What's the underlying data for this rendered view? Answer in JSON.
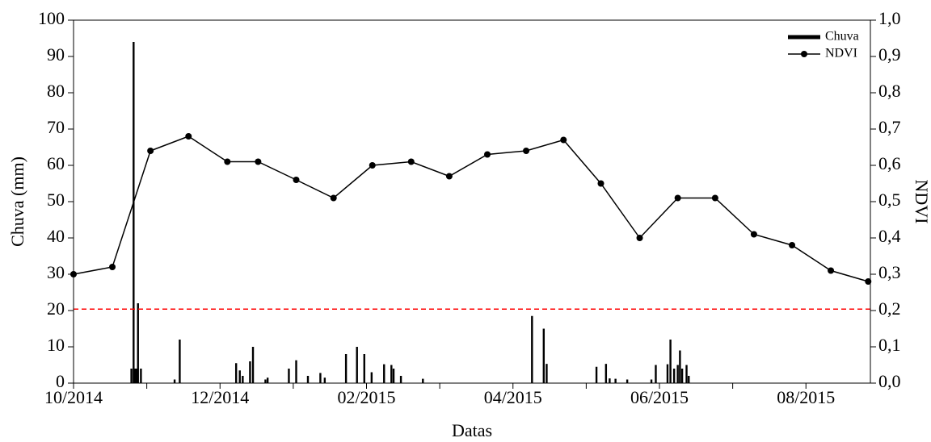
{
  "chart_data": {
    "type": "combo",
    "y_label": "Chuva (mm)",
    "y2_label": "NDVI",
    "x_label": "Datas",
    "xlim": [
      0,
      10.88
    ],
    "xticks": [
      {
        "value": 0,
        "label": "10/2014"
      },
      {
        "value": 2,
        "label": "12/2014"
      },
      {
        "value": 4,
        "label": "02/2015"
      },
      {
        "value": 6,
        "label": "04/2015"
      },
      {
        "value": 8,
        "label": "06/2015"
      },
      {
        "value": 10,
        "label": "08/2015"
      }
    ],
    "xminor_ticks": [
      1,
      3,
      5,
      7,
      9
    ],
    "ylim": [
      0,
      100
    ],
    "yticks": [
      0,
      10,
      20,
      30,
      40,
      50,
      60,
      70,
      80,
      90,
      100
    ],
    "y2lim": [
      0,
      1
    ],
    "y2ticks": [
      {
        "value": 0,
        "label": "0,0"
      },
      {
        "value": 0.1,
        "label": "0,1"
      },
      {
        "value": 0.2,
        "label": "0,2"
      },
      {
        "value": 0.3,
        "label": "0,3"
      },
      {
        "value": 0.4,
        "label": "0,4"
      },
      {
        "value": 0.5,
        "label": "0,5"
      },
      {
        "value": 0.6,
        "label": "0,6"
      },
      {
        "value": 0.7,
        "label": "0,7"
      },
      {
        "value": 0.8,
        "label": "0,8"
      },
      {
        "value": 0.9,
        "label": "0,9"
      },
      {
        "value": 1,
        "label": "1,0"
      }
    ],
    "threshold": {
      "value": 20.4,
      "color": "#ff0000"
    },
    "legend": "top-right",
    "series": [
      {
        "name": "Chuva",
        "type": "bar",
        "color": "#000000",
        "x": [
          0.79,
          0.82,
          0.84,
          0.86,
          0.88,
          0.92,
          1.38,
          1.45,
          2.22,
          2.27,
          2.31,
          2.41,
          2.45,
          2.62,
          2.65,
          2.94,
          3.04,
          3.2,
          3.37,
          3.43,
          3.72,
          3.87,
          3.97,
          4.07,
          4.24,
          4.34,
          4.37,
          4.47,
          4.77,
          6.26,
          6.42,
          6.46,
          7.14,
          7.27,
          7.32,
          7.4,
          7.56,
          7.89,
          7.95,
          8.11,
          8.15,
          8.2,
          8.25,
          8.28,
          8.31,
          8.37,
          8.4
        ],
        "values": [
          4,
          94,
          4,
          4,
          22,
          4,
          1,
          12,
          5.5,
          3.5,
          2,
          6,
          10,
          1,
          1.5,
          4,
          6.3,
          2,
          2.8,
          1.5,
          8,
          10,
          8,
          3,
          5.2,
          5,
          4,
          2,
          1.2,
          18.5,
          15,
          5.3,
          4.5,
          5.3,
          1.3,
          1.2,
          1,
          1,
          5,
          5.2,
          12,
          4,
          5,
          9,
          4,
          5,
          2
        ]
      },
      {
        "name": "NDVI",
        "type": "line",
        "axis": "y2",
        "color": "#000000",
        "x": [
          0,
          0.53,
          1.05,
          1.57,
          2.1,
          2.52,
          3.04,
          3.55,
          4.08,
          4.61,
          5.13,
          5.65,
          6.18,
          6.69,
          7.2,
          7.73,
          8.25,
          8.76,
          9.29,
          9.81,
          10.34,
          10.85
        ],
        "values": [
          0.3,
          0.32,
          0.64,
          0.68,
          0.61,
          0.61,
          0.56,
          0.51,
          0.6,
          0.61,
          0.57,
          0.63,
          0.64,
          0.67,
          0.55,
          0.4,
          0.51,
          0.51,
          0.41,
          0.38,
          0.31,
          0.28
        ]
      }
    ]
  }
}
